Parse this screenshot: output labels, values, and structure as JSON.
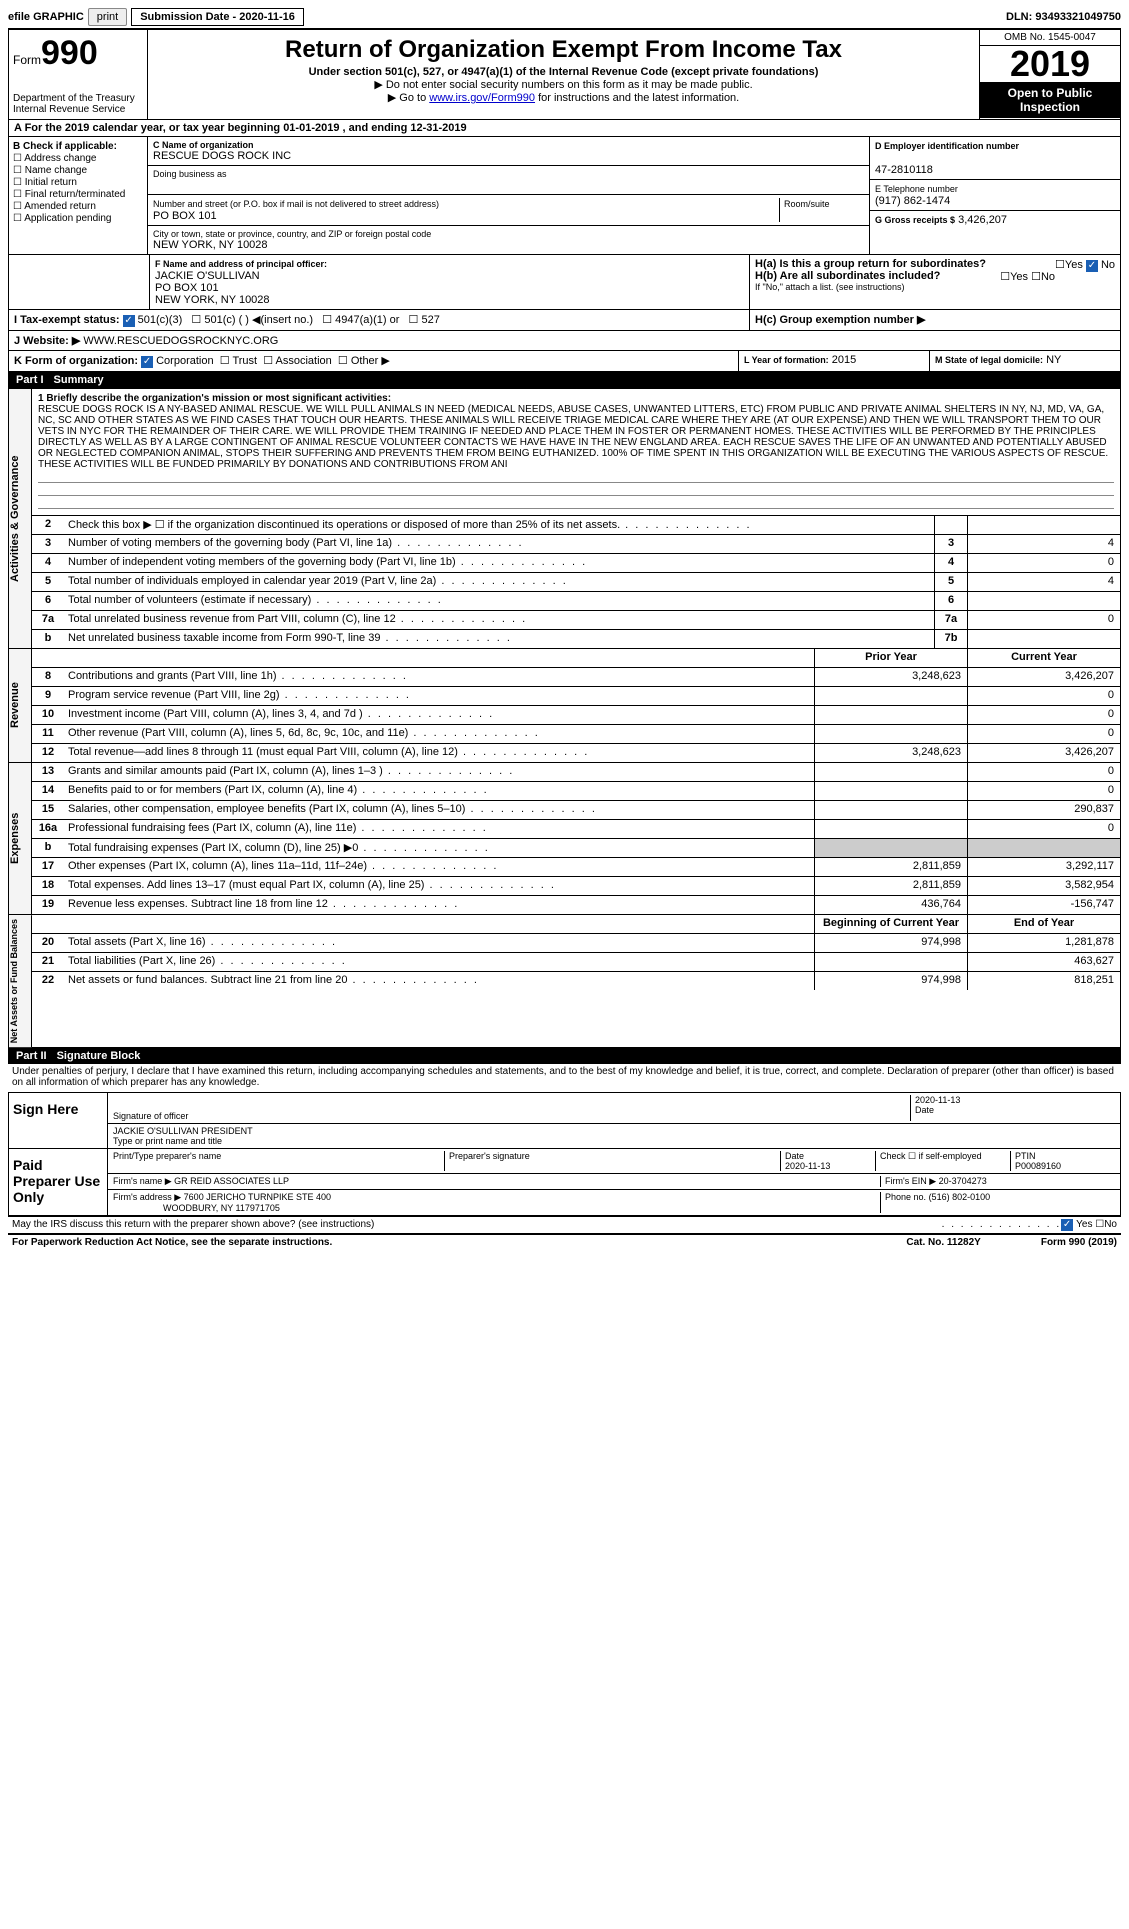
{
  "topbar": {
    "efile": "efile GRAPHIC",
    "print": "print",
    "submission_label": "Submission Date - 2020-11-16",
    "dln": "DLN: 93493321049750"
  },
  "header": {
    "form_prefix": "Form",
    "form_number": "990",
    "dept1": "Department of the Treasury",
    "dept2": "Internal Revenue Service",
    "title": "Return of Organization Exempt From Income Tax",
    "subtitle": "Under section 501(c), 527, or 4947(a)(1) of the Internal Revenue Code (except private foundations)",
    "note1": "▶ Do not enter social security numbers on this form as it may be made public.",
    "note2_pre": "▶ Go to ",
    "note2_link": "www.irs.gov/Form990",
    "note2_post": " for instructions and the latest information.",
    "omb": "OMB No. 1545-0047",
    "year": "2019",
    "open1": "Open to Public",
    "open2": "Inspection"
  },
  "section_a": "A For the 2019 calendar year, or tax year beginning 01-01-2019   , and ending 12-31-2019",
  "b": {
    "title": "B Check if applicable:",
    "opts": [
      "Address change",
      "Name change",
      "Initial return",
      "Final return/terminated",
      "Amended return",
      "Application pending"
    ]
  },
  "c": {
    "name_label": "C Name of organization",
    "name": "RESCUE DOGS ROCK INC",
    "dba_label": "Doing business as",
    "addr_label": "Number and street (or P.O. box if mail is not delivered to street address)",
    "room_label": "Room/suite",
    "addr": "PO BOX 101",
    "city_label": "City or town, state or province, country, and ZIP or foreign postal code",
    "city": "NEW YORK, NY  10028"
  },
  "d": {
    "label": "D Employer identification number",
    "val": "47-2810118"
  },
  "e": {
    "label": "E Telephone number",
    "val": "(917) 862-1474"
  },
  "g": {
    "label": "G Gross receipts $",
    "val": "3,426,207"
  },
  "f": {
    "label": "F  Name and address of principal officer:",
    "name": "JACKIE O'SULLIVAN",
    "addr1": "PO BOX 101",
    "addr2": "NEW YORK, NY  10028"
  },
  "h": {
    "a_label": "H(a)  Is this a group return for subordinates?",
    "b_label": "H(b)  Are all subordinates included?",
    "note": "If \"No,\" attach a list. (see instructions)",
    "c_label": "H(c)  Group exemption number ▶",
    "yes": "Yes",
    "no": "No"
  },
  "i": {
    "label": "I  Tax-exempt status:",
    "o1": "501(c)(3)",
    "o2": "501(c) (  ) ◀(insert no.)",
    "o3": "4947(a)(1) or",
    "o4": "527"
  },
  "j": {
    "label": "J  Website: ▶",
    "val": "WWW.RESCUEDOGSROCKNYC.ORG"
  },
  "k": {
    "label": "K Form of organization:",
    "o1": "Corporation",
    "o2": "Trust",
    "o3": "Association",
    "o4": "Other ▶"
  },
  "l": {
    "label": "L Year of formation:",
    "val": "2015"
  },
  "m": {
    "label": "M State of legal domicile:",
    "val": "NY"
  },
  "part1": {
    "label": "Part I",
    "title": "Summary"
  },
  "vtabs": {
    "act": "Activities & Governance",
    "rev": "Revenue",
    "exp": "Expenses",
    "net": "Net Assets or Fund Balances"
  },
  "mission": {
    "label": "1  Briefly describe the organization's mission or most significant activities:",
    "text": "RESCUE DOGS ROCK IS A NY-BASED ANIMAL RESCUE. WE WILL PULL ANIMALS IN NEED (MEDICAL NEEDS, ABUSE CASES, UNWANTED LITTERS, ETC) FROM PUBLIC AND PRIVATE ANIMAL SHELTERS IN NY, NJ, MD, VA, GA, NC, SC AND OTHER STATES AS WE FIND CASES THAT TOUCH OUR HEARTS. THESE ANIMALS WILL RECEIVE TRIAGE MEDICAL CARE WHERE THEY ARE (AT OUR EXPENSE) AND THEN WE WILL TRANSPORT THEM TO OUR VETS IN NYC FOR THE REMAINDER OF THEIR CARE. WE WILL PROVIDE THEM TRAINING IF NEEDED AND PLACE THEM IN FOSTER OR PERMANENT HOMES. THESE ACTIVITIES WILL BE PERFORMED BY THE PRINCIPLES DIRECTLY AS WELL AS BY A LARGE CONTINGENT OF ANIMAL RESCUE VOLUNTEER CONTACTS WE HAVE HAVE IN THE NEW ENGLAND AREA. EACH RESCUE SAVES THE LIFE OF AN UNWANTED AND POTENTIALLY ABUSED OR NEGLECTED COMPANION ANIMAL, STOPS THEIR SUFFERING AND PREVENTS THEM FROM BEING EUTHANIZED. 100% OF TIME SPENT IN THIS ORGANIZATION WILL BE EXECUTING THE VARIOUS ASPECTS OF RESCUE. THESE ACTIVITIES WILL BE FUNDED PRIMARILY BY DONATIONS AND CONTRIBUTIONS FROM ANI"
  },
  "gov_lines": [
    {
      "n": "2",
      "d": "Check this box ▶ ☐ if the organization discontinued its operations or disposed of more than 25% of its net assets.",
      "box": "",
      "v": ""
    },
    {
      "n": "3",
      "d": "Number of voting members of the governing body (Part VI, line 1a)",
      "box": "3",
      "v": "4"
    },
    {
      "n": "4",
      "d": "Number of independent voting members of the governing body (Part VI, line 1b)",
      "box": "4",
      "v": "0"
    },
    {
      "n": "5",
      "d": "Total number of individuals employed in calendar year 2019 (Part V, line 2a)",
      "box": "5",
      "v": "4"
    },
    {
      "n": "6",
      "d": "Total number of volunteers (estimate if necessary)",
      "box": "6",
      "v": ""
    },
    {
      "n": "7a",
      "d": "Total unrelated business revenue from Part VIII, column (C), line 12",
      "box": "7a",
      "v": "0"
    },
    {
      "n": "b",
      "d": "Net unrelated business taxable income from Form 990-T, line 39",
      "box": "7b",
      "v": ""
    }
  ],
  "two_col_header": {
    "prior": "Prior Year",
    "current": "Current Year"
  },
  "rev_lines": [
    {
      "n": "8",
      "d": "Contributions and grants (Part VIII, line 1h)",
      "p": "3,248,623",
      "c": "3,426,207"
    },
    {
      "n": "9",
      "d": "Program service revenue (Part VIII, line 2g)",
      "p": "",
      "c": "0"
    },
    {
      "n": "10",
      "d": "Investment income (Part VIII, column (A), lines 3, 4, and 7d )",
      "p": "",
      "c": "0"
    },
    {
      "n": "11",
      "d": "Other revenue (Part VIII, column (A), lines 5, 6d, 8c, 9c, 10c, and 11e)",
      "p": "",
      "c": "0"
    },
    {
      "n": "12",
      "d": "Total revenue—add lines 8 through 11 (must equal Part VIII, column (A), line 12)",
      "p": "3,248,623",
      "c": "3,426,207"
    }
  ],
  "exp_lines": [
    {
      "n": "13",
      "d": "Grants and similar amounts paid (Part IX, column (A), lines 1–3 )",
      "p": "",
      "c": "0"
    },
    {
      "n": "14",
      "d": "Benefits paid to or for members (Part IX, column (A), line 4)",
      "p": "",
      "c": "0"
    },
    {
      "n": "15",
      "d": "Salaries, other compensation, employee benefits (Part IX, column (A), lines 5–10)",
      "p": "",
      "c": "290,837"
    },
    {
      "n": "16a",
      "d": "Professional fundraising fees (Part IX, column (A), line 11e)",
      "p": "",
      "c": "0"
    },
    {
      "n": "b",
      "d": "Total fundraising expenses (Part IX, column (D), line 25) ▶0",
      "p": "SHADED",
      "c": "SHADED"
    },
    {
      "n": "17",
      "d": "Other expenses (Part IX, column (A), lines 11a–11d, 11f–24e)",
      "p": "2,811,859",
      "c": "3,292,117"
    },
    {
      "n": "18",
      "d": "Total expenses. Add lines 13–17 (must equal Part IX, column (A), line 25)",
      "p": "2,811,859",
      "c": "3,582,954"
    },
    {
      "n": "19",
      "d": "Revenue less expenses. Subtract line 18 from line 12",
      "p": "436,764",
      "c": "-156,747"
    }
  ],
  "net_header": {
    "begin": "Beginning of Current Year",
    "end": "End of Year"
  },
  "net_lines": [
    {
      "n": "20",
      "d": "Total assets (Part X, line 16)",
      "p": "974,998",
      "c": "1,281,878"
    },
    {
      "n": "21",
      "d": "Total liabilities (Part X, line 26)",
      "p": "",
      "c": "463,627"
    },
    {
      "n": "22",
      "d": "Net assets or fund balances. Subtract line 21 from line 20",
      "p": "974,998",
      "c": "818,251"
    }
  ],
  "part2": {
    "label": "Part II",
    "title": "Signature Block"
  },
  "sig": {
    "decl": "Under penalties of perjury, I declare that I have examined this return, including accompanying schedules and statements, and to the best of my knowledge and belief, it is true, correct, and complete. Declaration of preparer (other than officer) is based on all information of which preparer has any knowledge.",
    "sign_here": "Sign Here",
    "sig_officer": "Signature of officer",
    "date_label": "Date",
    "date": "2020-11-13",
    "officer": "JACKIE O'SULLIVAN  PRESIDENT",
    "type_label": "Type or print name and title",
    "paid": "Paid Preparer Use Only",
    "prep_name_label": "Print/Type preparer's name",
    "prep_sig_label": "Preparer's signature",
    "prep_date": "2020-11-13",
    "check_self": "Check ☐ if self-employed",
    "ptin_label": "PTIN",
    "ptin": "P00089160",
    "firm_name_label": "Firm's name    ▶",
    "firm_name": "GR REID ASSOCIATES LLP",
    "firm_ein_label": "Firm's EIN ▶",
    "firm_ein": "20-3704273",
    "firm_addr_label": "Firm's address ▶",
    "firm_addr1": "7600 JERICHO TURNPIKE STE 400",
    "firm_addr2": "WOODBURY, NY  117971705",
    "phone_label": "Phone no.",
    "phone": "(516) 802-0100",
    "discuss": "May the IRS discuss this return with the preparer shown above? (see instructions)",
    "yes": "Yes",
    "no": "No"
  },
  "footer": {
    "left": "For Paperwork Reduction Act Notice, see the separate instructions.",
    "mid": "Cat. No. 11282Y",
    "right": "Form 990 (2019)"
  }
}
